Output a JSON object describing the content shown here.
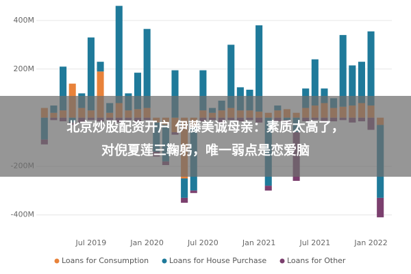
{
  "chart_data": {
    "type": "stacked-bar",
    "categories": [
      null,
      null,
      null,
      null,
      null,
      "Jul 2019",
      null,
      null,
      null,
      null,
      null,
      "Jan 2020",
      null,
      null,
      null,
      null,
      null,
      "Jul 2020",
      null,
      null,
      null,
      null,
      null,
      "Jan 2021",
      null,
      null,
      null,
      null,
      null,
      "Jul 2021",
      null,
      null,
      null,
      null,
      null,
      "Jan 2022",
      null
    ],
    "series": [
      {
        "name": "Loans for Consumption",
        "color": "#e8823a",
        "values": [
          40,
          20,
          30,
          140,
          40,
          30,
          190,
          20,
          60,
          30,
          35,
          40,
          -20,
          -30,
          -60,
          -250,
          -40,
          30,
          20,
          30,
          40,
          30,
          30,
          25,
          20,
          30,
          35,
          20,
          40,
          50,
          60,
          40,
          45,
          50,
          60,
          50,
          -30
        ]
      },
      {
        "name": "Loans for House Purchase",
        "color": "#1f7a9a",
        "values": [
          -90,
          30,
          180,
          -20,
          60,
          300,
          40,
          40,
          400,
          70,
          150,
          325,
          -120,
          -150,
          195,
          -80,
          -260,
          165,
          20,
          40,
          260,
          95,
          85,
          355,
          -280,
          20,
          -10,
          -60,
          80,
          190,
          60,
          40,
          295,
          165,
          170,
          305,
          -300
        ]
      },
      {
        "name": "Loans for Other",
        "color": "#7b3f6e",
        "values": [
          -20,
          -10,
          -15,
          -10,
          -20,
          -10,
          -15,
          -10,
          -20,
          -10,
          -15,
          -10,
          -20,
          -15,
          -10,
          -20,
          -10,
          -15,
          -10,
          -20,
          -10,
          -15,
          -10,
          -20,
          -20,
          -15,
          -10,
          -200,
          -15,
          -10,
          -20,
          -15,
          -10,
          -20,
          -15,
          -50,
          -80
        ]
      }
    ],
    "ylim": [
      -460,
      470
    ],
    "yticks": [
      {
        "value": 400,
        "label": "400M"
      },
      {
        "value": 200,
        "label": "200M"
      },
      {
        "value": -200,
        "label": "-200M"
      },
      {
        "value": -400,
        "label": "-400M"
      }
    ],
    "grid": true
  },
  "overlay": {
    "lines": [
      "北京炒股配资开户 伊藤美诚母亲：素质太高了，",
      "对倪夏莲三鞠躬，唯一弱点是恋爱脑"
    ]
  }
}
